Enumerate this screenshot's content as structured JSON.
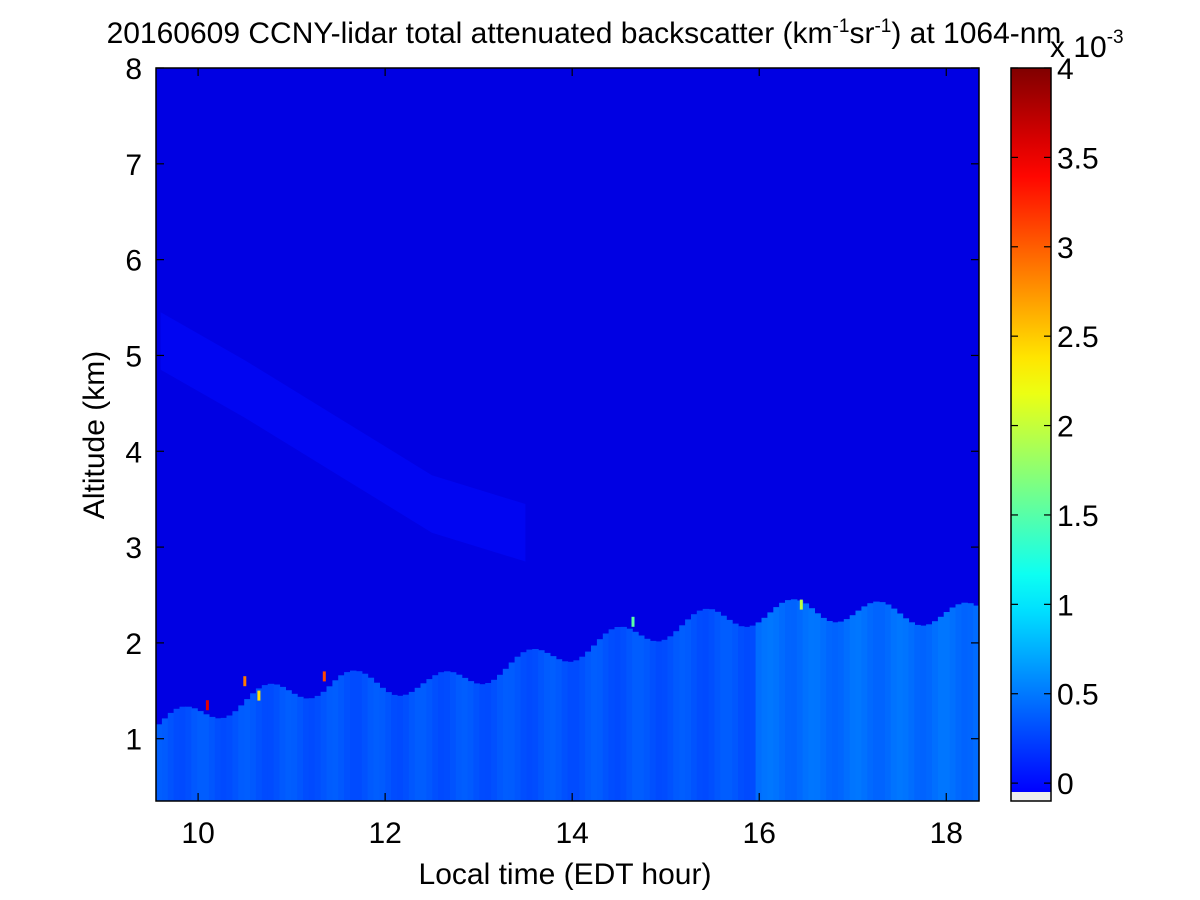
{
  "chart_data": {
    "type": "heatmap",
    "title": {
      "main": "20160609 CCNY-lidar total attenuated backscatter (km",
      "sup1": "-1",
      "mid": "sr",
      "sup2": "-1",
      "end": ") at 1064-nm"
    },
    "xlabel": "Local time (EDT hour)",
    "ylabel": "Altitude (km)",
    "xlim": [
      9.55,
      18.35
    ],
    "ylim": [
      0.35,
      8
    ],
    "xticks": [
      10,
      12,
      14,
      16,
      18
    ],
    "xtick_labels": [
      "10",
      "12",
      "14",
      "16",
      "18"
    ],
    "yticks": [
      1,
      2,
      3,
      4,
      5,
      6,
      7,
      8
    ],
    "ytick_labels": [
      "1",
      "2",
      "3",
      "4",
      "5",
      "6",
      "7",
      "8"
    ],
    "colorbar": {
      "range": [
        -0.1,
        4
      ],
      "ticks": [
        0,
        0.5,
        1,
        1.5,
        2,
        2.5,
        3,
        3.5,
        4
      ],
      "tick_labels": [
        "0",
        "0.5",
        "1",
        "1.5",
        "2",
        "2.5",
        "3",
        "3.5",
        "4"
      ],
      "multiplier": {
        "base": "x 10",
        "exp": "-3"
      },
      "colormap": "jet"
    },
    "grid": false,
    "features": {
      "background_level": 0.3,
      "boundary_layer_level": 0.75,
      "boundary_layer_top_km": [
        {
          "time": 9.6,
          "alt": 1.15
        },
        {
          "time": 10.5,
          "alt": 1.4
        },
        {
          "time": 11.5,
          "alt": 1.6
        },
        {
          "time": 12.5,
          "alt": 1.55
        },
        {
          "time": 13.5,
          "alt": 1.8
        },
        {
          "time": 14.5,
          "alt": 2.05
        },
        {
          "time": 15.5,
          "alt": 2.25
        },
        {
          "time": 16.5,
          "alt": 2.35
        },
        {
          "time": 17.5,
          "alt": 2.3
        },
        {
          "time": 18.35,
          "alt": 2.3
        }
      ],
      "aerosol_layer_level": 0.45,
      "aerosol_layer": [
        {
          "time": 9.6,
          "alt": 5.3
        },
        {
          "time": 10.5,
          "alt": 4.8
        },
        {
          "time": 11.5,
          "alt": 4.2
        },
        {
          "time": 12.5,
          "alt": 3.6
        },
        {
          "time": 13.5,
          "alt": 3.3
        }
      ],
      "bright_spots": [
        {
          "time": 10.1,
          "alt": 1.35,
          "level": 3.6
        },
        {
          "time": 10.5,
          "alt": 1.6,
          "level": 3.0
        },
        {
          "time": 10.65,
          "alt": 1.45,
          "level": 2.6
        },
        {
          "time": 11.35,
          "alt": 1.65,
          "level": 3.2
        },
        {
          "time": 14.65,
          "alt": 2.22,
          "level": 1.8
        },
        {
          "time": 16.45,
          "alt": 2.4,
          "level": 2.2
        }
      ]
    }
  }
}
